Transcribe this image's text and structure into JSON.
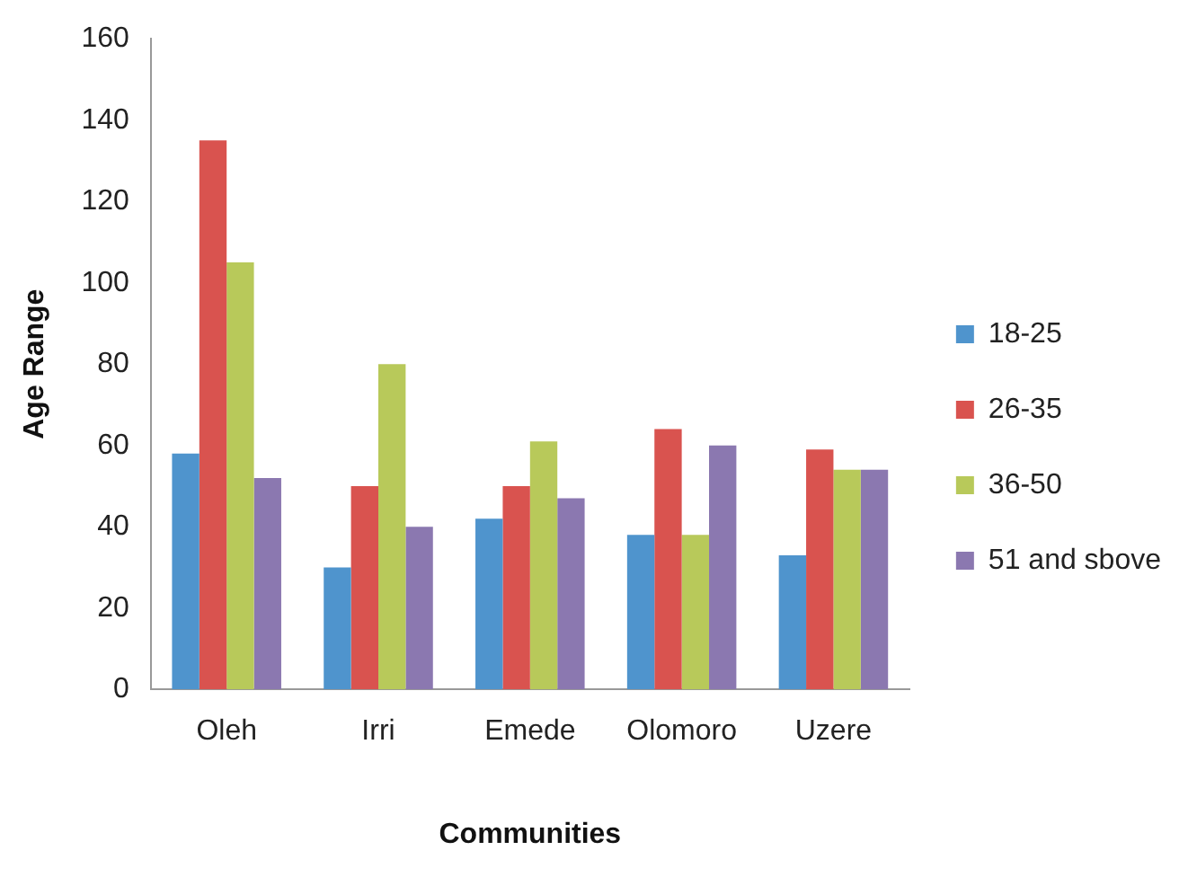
{
  "chart_data": {
    "type": "bar",
    "xlabel": "Communities",
    "ylabel": "Age Range",
    "categories": [
      "Oleh",
      "Irri",
      "Emede",
      "Olomoro",
      "Uzere"
    ],
    "series": [
      {
        "name": "18-25",
        "color": "#4f94cd",
        "values": [
          58,
          30,
          42,
          38,
          33
        ]
      },
      {
        "name": "26-35",
        "color": "#d9534f",
        "values": [
          135,
          50,
          50,
          64,
          59
        ]
      },
      {
        "name": "36-50",
        "color": "#b8c95a",
        "values": [
          105,
          80,
          61,
          38,
          54
        ]
      },
      {
        "name": "51 and sbove",
        "color": "#8b78b0",
        "values": [
          52,
          40,
          47,
          60,
          54
        ]
      }
    ],
    "ylim": [
      0,
      160
    ],
    "yticks": [
      0,
      20,
      40,
      60,
      80,
      100,
      120,
      140,
      160
    ],
    "grid": false,
    "legend": "right"
  }
}
